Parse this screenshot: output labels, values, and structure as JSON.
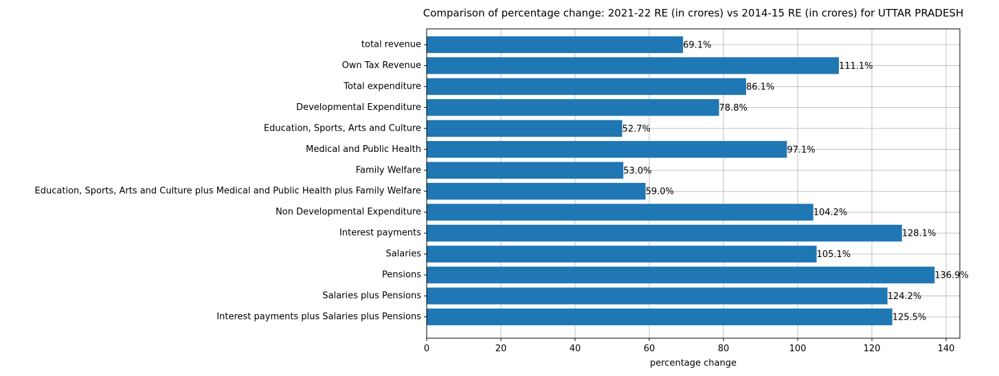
{
  "chart_data": {
    "type": "bar",
    "orientation": "horizontal",
    "title": "Comparison of percentage change: 2021-22 RE (in crores) vs 2014-15 RE (in crores) for UTTAR PRADESH",
    "xlabel": "percentage change",
    "ylabel": "",
    "xlim": [
      0,
      143.7
    ],
    "xticks": [
      0,
      20,
      40,
      60,
      80,
      100,
      120,
      140
    ],
    "grid": true,
    "bar_color": "#1f77b4",
    "categories": [
      "total revenue",
      "Own Tax Revenue",
      "Total expenditure",
      "Developmental Expenditure",
      "Education, Sports, Arts and Culture",
      "Medical and Public Health",
      "Family Welfare",
      "Education, Sports, Arts and Culture plus Medical and Public Health plus Family Welfare",
      "Non Developmental Expenditure",
      "Interest payments",
      "Salaries",
      "Pensions",
      "Salaries plus Pensions",
      "Interest payments plus Salaries plus Pensions"
    ],
    "values": [
      69.1,
      111.1,
      86.1,
      78.8,
      52.7,
      97.1,
      53.0,
      59.0,
      104.2,
      128.1,
      105.1,
      136.9,
      124.2,
      125.5
    ],
    "value_labels": [
      "69.1%",
      "111.1%",
      "86.1%",
      "78.8%",
      "52.7%",
      "97.1%",
      "53.0%",
      "59.0%",
      "104.2%",
      "128.1%",
      "105.1%",
      "136.9%",
      "124.2%",
      "125.5%"
    ]
  }
}
